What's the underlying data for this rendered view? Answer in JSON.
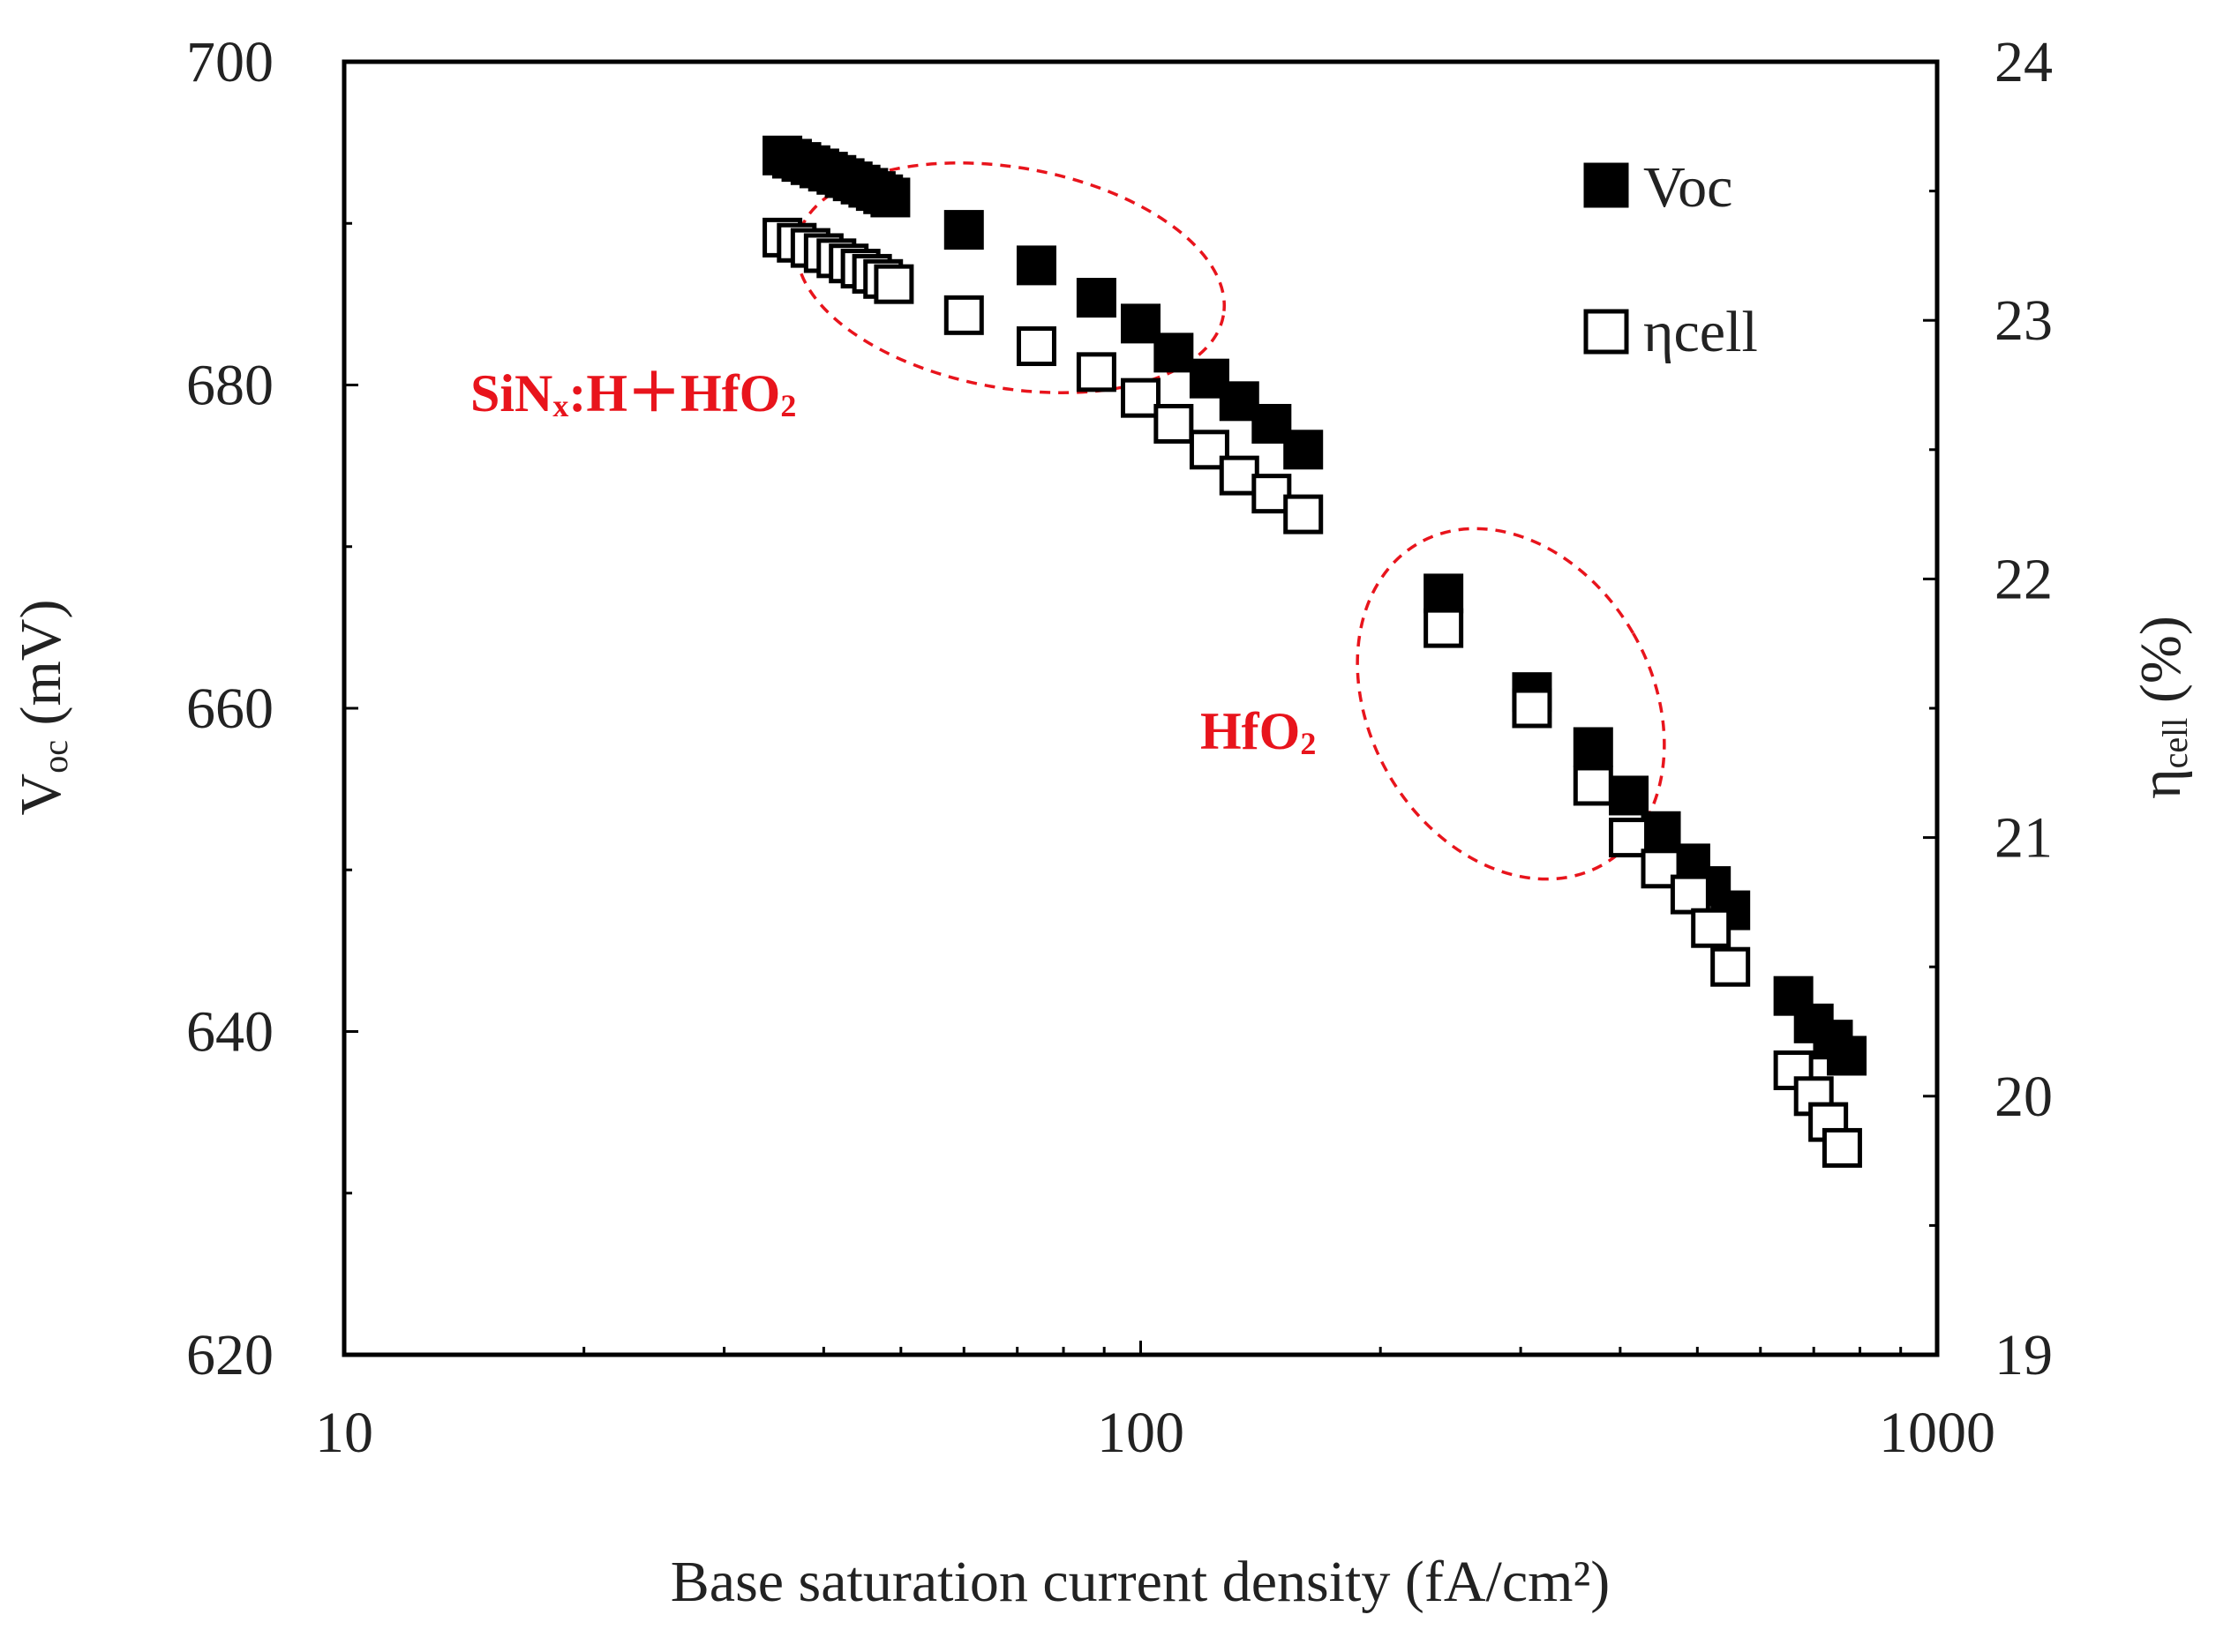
{
  "chart_data": {
    "type": "scatter",
    "title": "",
    "x_axis": {
      "label": "Base saturation current density (fA/cm²)",
      "scale": "log",
      "range": [
        10,
        1000
      ],
      "tick_labels": [
        "10",
        "100",
        "1000"
      ]
    },
    "y_axis_left": {
      "label_main": "V",
      "label_sub": "oc",
      "label_unit": " (mV)",
      "range": [
        620,
        700
      ],
      "tick_values": [
        620,
        640,
        660,
        680,
        700
      ],
      "tick_labels": [
        "620",
        "640",
        "660",
        "680",
        "700"
      ]
    },
    "y_axis_right": {
      "label_main": "η",
      "label_sub": "cell",
      "label_unit": " (%)",
      "range": [
        19,
        24
      ],
      "tick_values": [
        19,
        20,
        21,
        22,
        23,
        24
      ],
      "tick_labels": [
        "19",
        "20",
        "21",
        "22",
        "23",
        "24"
      ]
    },
    "legend": {
      "position": "top-right",
      "entries": [
        {
          "label": "Voc",
          "marker": "filled-square"
        },
        {
          "label": "ηcell",
          "marker": "open-square"
        }
      ]
    },
    "series": [
      {
        "name": "Voc",
        "axis": "left",
        "marker": "filled-square",
        "points": [
          {
            "x": 35.5,
            "y": 694.2
          },
          {
            "x": 36.5,
            "y": 694.0
          },
          {
            "x": 37.5,
            "y": 693.8
          },
          {
            "x": 38.5,
            "y": 693.6
          },
          {
            "x": 39.5,
            "y": 693.4
          },
          {
            "x": 40.5,
            "y": 693.2
          },
          {
            "x": 41.5,
            "y": 693.0
          },
          {
            "x": 42.5,
            "y": 692.8
          },
          {
            "x": 43.5,
            "y": 692.6
          },
          {
            "x": 44.5,
            "y": 692.4
          },
          {
            "x": 45.5,
            "y": 692.2
          },
          {
            "x": 46.5,
            "y": 692.0
          },
          {
            "x": 47.5,
            "y": 691.8
          },
          {
            "x": 48.5,
            "y": 691.6
          },
          {
            "x": 60,
            "y": 689.6
          },
          {
            "x": 74,
            "y": 687.4
          },
          {
            "x": 88,
            "y": 685.4
          },
          {
            "x": 100,
            "y": 683.8
          },
          {
            "x": 110,
            "y": 682.0
          },
          {
            "x": 122,
            "y": 680.4
          },
          {
            "x": 133,
            "y": 679.0
          },
          {
            "x": 146,
            "y": 677.6
          },
          {
            "x": 160,
            "y": 676.0
          },
          {
            "x": 240,
            "y": 667.1
          },
          {
            "x": 310,
            "y": 661.0
          },
          {
            "x": 370,
            "y": 657.6
          },
          {
            "x": 410,
            "y": 654.6
          },
          {
            "x": 450,
            "y": 652.4
          },
          {
            "x": 490,
            "y": 650.4
          },
          {
            "x": 520,
            "y": 649.0
          },
          {
            "x": 550,
            "y": 647.5
          },
          {
            "x": 660,
            "y": 642.2
          },
          {
            "x": 700,
            "y": 640.5
          },
          {
            "x": 740,
            "y": 639.5
          },
          {
            "x": 770,
            "y": 638.5
          }
        ]
      },
      {
        "name": "ηcell",
        "axis": "right",
        "marker": "open-square",
        "points": [
          {
            "x": 35.5,
            "y": 23.32
          },
          {
            "x": 37,
            "y": 23.3
          },
          {
            "x": 38.5,
            "y": 23.28
          },
          {
            "x": 40,
            "y": 23.26
          },
          {
            "x": 41.5,
            "y": 23.24
          },
          {
            "x": 43,
            "y": 23.22
          },
          {
            "x": 44.5,
            "y": 23.2
          },
          {
            "x": 46,
            "y": 23.18
          },
          {
            "x": 47.5,
            "y": 23.16
          },
          {
            "x": 49,
            "y": 23.14
          },
          {
            "x": 60,
            "y": 23.02
          },
          {
            "x": 74,
            "y": 22.9
          },
          {
            "x": 88,
            "y": 22.8
          },
          {
            "x": 100,
            "y": 22.7
          },
          {
            "x": 110,
            "y": 22.6
          },
          {
            "x": 122,
            "y": 22.5
          },
          {
            "x": 133,
            "y": 22.4
          },
          {
            "x": 146,
            "y": 22.33
          },
          {
            "x": 160,
            "y": 22.25
          },
          {
            "x": 240,
            "y": 21.81
          },
          {
            "x": 310,
            "y": 21.5
          },
          {
            "x": 370,
            "y": 21.2
          },
          {
            "x": 410,
            "y": 21.0
          },
          {
            "x": 450,
            "y": 20.88
          },
          {
            "x": 490,
            "y": 20.78
          },
          {
            "x": 520,
            "y": 20.65
          },
          {
            "x": 550,
            "y": 20.5
          },
          {
            "x": 660,
            "y": 20.1
          },
          {
            "x": 700,
            "y": 20.0
          },
          {
            "x": 730,
            "y": 19.9
          },
          {
            "x": 760,
            "y": 19.8
          }
        ]
      }
    ],
    "annotations": [
      {
        "text_parts": [
          "SiN",
          "x",
          ":H",
          "＋",
          "HfO",
          "2"
        ],
        "color": "#e8141c",
        "group": "sinx-hfo2"
      },
      {
        "text_parts": [
          "HfO",
          "2"
        ],
        "color": "#e8141c",
        "group": "hfo2"
      }
    ],
    "colors": {
      "axis": "#000000",
      "marker": "#000000",
      "annotation": "#e8141c"
    }
  }
}
